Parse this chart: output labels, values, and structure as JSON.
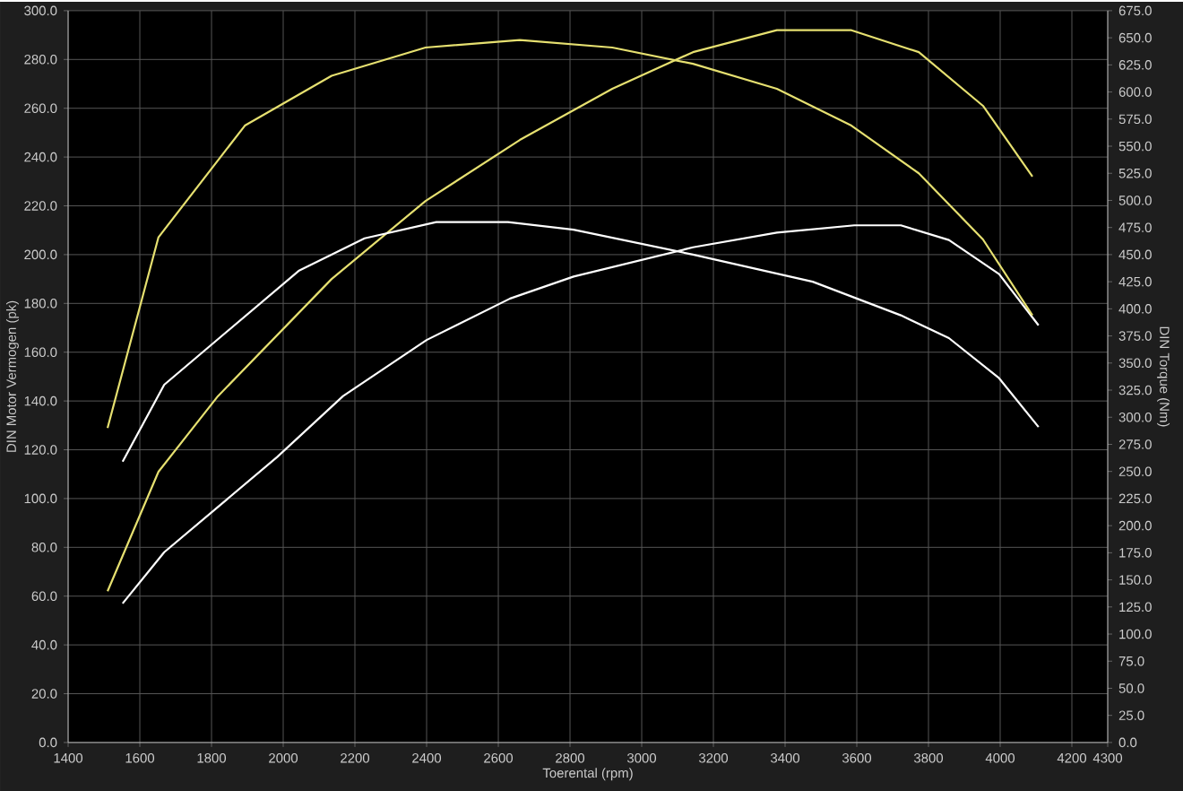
{
  "chart_data": {
    "type": "line",
    "xlabel": "Toerental (rpm)",
    "ylabel": "DIN Motor Vermogen (pk)",
    "y2label": "DIN Torque (Nm)",
    "xlim": [
      1400,
      4300
    ],
    "xticks": [
      1400,
      1600,
      1800,
      2000,
      2200,
      2400,
      2600,
      2800,
      3000,
      3200,
      3400,
      3600,
      3800,
      4000,
      4200,
      4300
    ],
    "ylim": [
      0,
      300
    ],
    "yticks": [
      {
        "value": 0,
        "label": "0.0"
      },
      {
        "value": 20,
        "label": "20.0"
      },
      {
        "value": 40,
        "label": "40.0"
      },
      {
        "value": 60,
        "label": "60.0"
      },
      {
        "value": 80,
        "label": "80.0"
      },
      {
        "value": 100,
        "label": "100.0"
      },
      {
        "value": 120,
        "label": "120.0"
      },
      {
        "value": 140,
        "label": "140.0"
      },
      {
        "value": 160,
        "label": "160.0"
      },
      {
        "value": 180,
        "label": "180.0"
      },
      {
        "value": 200,
        "label": "200.0"
      },
      {
        "value": 220,
        "label": "220.0"
      },
      {
        "value": 240,
        "label": "240.0"
      },
      {
        "value": 260,
        "label": "260.0"
      },
      {
        "value": 280,
        "label": "280.0"
      },
      {
        "value": 300,
        "label": "300.0"
      }
    ],
    "y2lim": [
      0,
      675
    ],
    "y2ticks": [
      {
        "value": 0,
        "label": "0.0"
      },
      {
        "value": 25,
        "label": "25.0"
      },
      {
        "value": 50,
        "label": "50.0"
      },
      {
        "value": 75,
        "label": "75.0"
      },
      {
        "value": 100,
        "label": "100.0"
      },
      {
        "value": 125,
        "label": "125.0"
      },
      {
        "value": 150,
        "label": "150.0"
      },
      {
        "value": 175,
        "label": "175.0"
      },
      {
        "value": 200,
        "label": "200.0"
      },
      {
        "value": 225,
        "label": "225.0"
      },
      {
        "value": 250,
        "label": "250.0"
      },
      {
        "value": 275,
        "label": "275.0"
      },
      {
        "value": 300,
        "label": "300.0"
      },
      {
        "value": 325,
        "label": "325.0"
      },
      {
        "value": 350,
        "label": "350.0"
      },
      {
        "value": 375,
        "label": "375.0"
      },
      {
        "value": 400,
        "label": "400.0"
      },
      {
        "value": 425,
        "label": "425.0"
      },
      {
        "value": 450,
        "label": "450.0"
      },
      {
        "value": 475,
        "label": "475.0"
      },
      {
        "value": 500,
        "label": "500.0"
      },
      {
        "value": 525,
        "label": "525.0"
      },
      {
        "value": 550,
        "label": "550.0"
      },
      {
        "value": 575,
        "label": "575.0"
      },
      {
        "value": 600,
        "label": "600.0"
      },
      {
        "value": 625,
        "label": "625.0"
      },
      {
        "value": 650,
        "label": "650.0"
      },
      {
        "value": 675,
        "label": "675.0"
      }
    ],
    "grid": true,
    "series": [
      {
        "color": "#e6e070",
        "x": [
          1510,
          1652,
          1818,
          2135,
          2397,
          2660,
          2918,
          3143,
          3377,
          3585,
          3773,
          3952,
          4090
        ],
        "values": [
          62,
          111,
          142,
          190,
          222,
          247,
          268,
          283,
          292,
          292,
          283,
          261,
          232
        ]
      },
      {
        "color": "#ffffff",
        "x": [
          1552,
          1668,
          1983,
          2167,
          2400,
          2633,
          2810,
          3143,
          3377,
          3593,
          3723,
          3857,
          3997,
          4107
        ],
        "values": [
          57,
          78,
          117,
          142,
          165,
          182,
          191,
          203,
          209,
          212,
          212,
          206,
          192,
          171
        ]
      },
      {
        "color": "#e6e070",
        "axis": "y2",
        "x": [
          1510,
          1652,
          1893,
          2135,
          2397,
          2660,
          2918,
          3143,
          3377,
          3585,
          3773,
          3952,
          4090
        ],
        "values": [
          290,
          466,
          569,
          615,
          641,
          648,
          641,
          626,
          603,
          569,
          525,
          464,
          394
        ]
      },
      {
        "color": "#ffffff",
        "axis": "y2",
        "x": [
          1552,
          1668,
          2043,
          2227,
          2427,
          2627,
          2810,
          3143,
          3477,
          3723,
          3857,
          3997,
          4107
        ],
        "values": [
          259,
          330,
          435,
          465,
          480,
          480,
          473,
          450,
          425,
          394,
          373,
          336,
          291
        ]
      }
    ]
  }
}
